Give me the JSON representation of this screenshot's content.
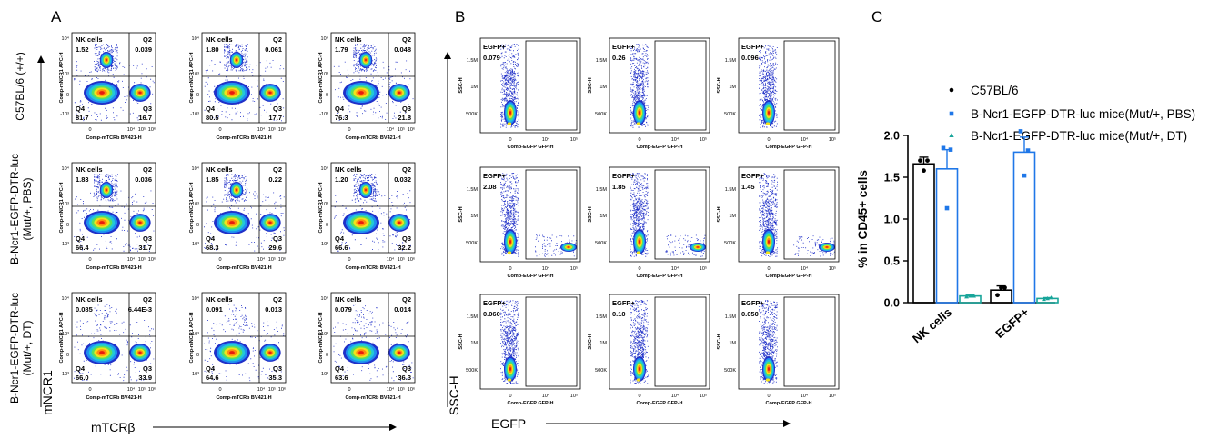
{
  "panels": {
    "a": "A",
    "b": "B",
    "c": "C"
  },
  "rows": [
    "C57BL/6 (+/+)",
    "B-Ncr1-EGFP-DTR-luc (Mut/+, PBS)",
    "B-Ncr1-EGFP-DTR-luc (Mut/+, DT)"
  ],
  "row_lines": [
    [
      "C57BL/6 (+/+)"
    ],
    [
      "B-Ncr1-EGFP-DTR-luc",
      "(Mut/+, PBS)"
    ],
    [
      "B-Ncr1-EGFP-DTR-luc",
      "(Mut/+, DT)"
    ]
  ],
  "plot_a": {
    "ylabel": "Comp-mNCR1 APC-H",
    "xlabel": "Comp-mTCRb BV421-H",
    "yticks": [
      "10⁴",
      "10³",
      "0",
      "-10³"
    ],
    "xticks": [
      "0",
      "10⁴",
      "10⁵",
      "10⁶"
    ],
    "axis_y_big": "mNCR1",
    "axis_x_big": "mTCRβ",
    "quadrant_names": {
      "q1": "NK cells",
      "q2": "Q2",
      "q3": "Q3",
      "q4": "Q4"
    }
  },
  "plot_b": {
    "ylabel": "SSC-H",
    "xlabel": "Comp-EGFP GFP-H",
    "yticks": [
      "1.5M",
      "1M",
      "500K"
    ],
    "xticks": [
      "0",
      "10⁴",
      "10⁵"
    ],
    "gate": "EGFP+",
    "axis_y_big": "SSC-H",
    "axis_x_big": "EGFP"
  },
  "flow_a": [
    [
      {
        "nk": "1.52",
        "q2": "0.039",
        "q3": "16.7",
        "q4": "81.7"
      },
      {
        "nk": "1.80",
        "q2": "0.061",
        "q3": "17.7",
        "q4": "80.5"
      },
      {
        "nk": "1.79",
        "q2": "0.048",
        "q3": "21.8",
        "q4": "76.3"
      }
    ],
    [
      {
        "nk": "1.83",
        "q2": "0.036",
        "q3": "31.7",
        "q4": "66.4"
      },
      {
        "nk": "1.85",
        "q2": "0.22",
        "q3": "29.6",
        "q4": "68.3"
      },
      {
        "nk": "1.20",
        "q2": "0.032",
        "q3": "32.2",
        "q4": "66.6"
      }
    ],
    [
      {
        "nk": "0.085",
        "q2": "6.44E-3",
        "q3": "33.9",
        "q4": "66.0"
      },
      {
        "nk": "0.091",
        "q2": "0.013",
        "q3": "35.3",
        "q4": "64.6"
      },
      {
        "nk": "0.079",
        "q2": "0.014",
        "q3": "36.3",
        "q4": "63.6"
      }
    ]
  ],
  "flow_b": [
    [
      "0.079",
      "0.26",
      "0.096"
    ],
    [
      "2.08",
      "1.85",
      "1.45"
    ],
    [
      "0.060",
      "0.10",
      "0.050"
    ]
  ],
  "chart_data": {
    "type": "bar",
    "title": "",
    "categories": [
      "NK cells",
      "EGFP+"
    ],
    "ylabel": "% in CD45+ cells",
    "ylim": [
      0,
      2.0
    ],
    "yticks": [
      "0.0",
      "0.5",
      "1.0",
      "1.5",
      "2.0"
    ],
    "legend_position": "top",
    "series": [
      {
        "name": "C57BL/6",
        "color": "#000000",
        "marker": "circle",
        "values": [
          1.66,
          0.15
        ],
        "sem": [
          0.08,
          0.05
        ],
        "points": [
          [
            1.7,
            1.7,
            1.58
          ],
          [
            0.09,
            0.18,
            0.18
          ]
        ]
      },
      {
        "name": "B-Ncr1-EGFP-DTR-luc mice(Mut/+, PBS)",
        "color": "#1f77e8",
        "marker": "square",
        "values": [
          1.6,
          1.8
        ],
        "sem": [
          0.23,
          0.18
        ],
        "points": [
          [
            1.85,
            1.83,
            1.13
          ],
          [
            2.05,
            1.82,
            1.52
          ]
        ]
      },
      {
        "name": "B-Ncr1-EGFP-DTR-luc mice(Mut/+, DT)",
        "color": "#19a59a",
        "marker": "triangle",
        "values": [
          0.08,
          0.05
        ],
        "sem": [
          0.01,
          0.01
        ],
        "points": [
          [
            0.07,
            0.08,
            0.08
          ],
          [
            0.04,
            0.06,
            0.05
          ]
        ]
      }
    ]
  }
}
